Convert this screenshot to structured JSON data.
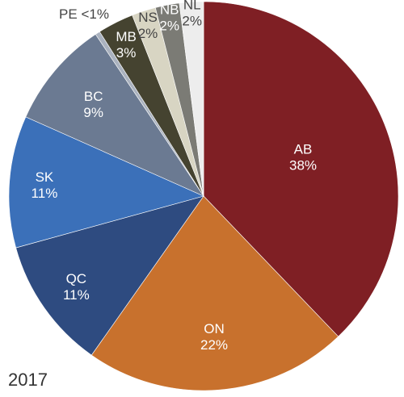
{
  "chart_data": {
    "type": "pie",
    "title": "",
    "year": "2017",
    "start_angle_deg": 0,
    "direction": "clockwise",
    "slices": [
      {
        "label": "AB",
        "value": 38,
        "value_label": "38%",
        "color": "#7f1f24",
        "label_color": "#ffffff"
      },
      {
        "label": "ON",
        "value": 22,
        "value_label": "22%",
        "color": "#c8712d",
        "label_color": "#ffffff"
      },
      {
        "label": "QC",
        "value": 11,
        "value_label": "11%",
        "color": "#2e4b80",
        "label_color": "#ffffff"
      },
      {
        "label": "SK",
        "value": 11,
        "value_label": "11%",
        "color": "#3b70b9",
        "label_color": "#ffffff"
      },
      {
        "label": "BC",
        "value": 9,
        "value_label": "9%",
        "color": "#6b7a92",
        "label_color": "#ffffff"
      },
      {
        "label": "PE",
        "value": 0.4,
        "value_label": "<1%",
        "color": "#aab2bf",
        "label_color": "#444444"
      },
      {
        "label": "MB",
        "value": 3,
        "value_label": "3%",
        "color": "#454330",
        "label_color": "#ffffff"
      },
      {
        "label": "NS",
        "value": 2,
        "value_label": "2%",
        "color": "#d8d5c3",
        "label_color": "#444444"
      },
      {
        "label": "NB",
        "value": 2,
        "value_label": "2%",
        "color": "#7b7b75",
        "label_color": "#ffffff"
      },
      {
        "label": "NL",
        "value": 2,
        "value_label": "2%",
        "color": "#ededed",
        "label_color": "#444444"
      }
    ]
  }
}
